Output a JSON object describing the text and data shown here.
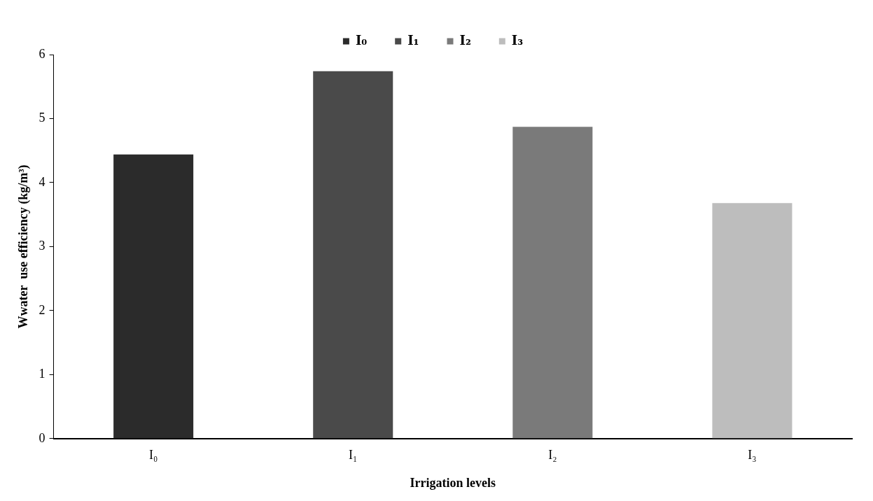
{
  "chart_data": {
    "type": "bar",
    "xlabel": "Irrigation levels",
    "ylabel": "Wwater  use efficiency (kg/m³)",
    "categories": [
      "I₀",
      "I₁",
      "I₂",
      "I₃"
    ],
    "series": [
      {
        "name": "I₀",
        "color": "#2b2b2b",
        "values": [
          4.44,
          null,
          null,
          null
        ]
      },
      {
        "name": "I₁",
        "color": "#4a4a4a",
        "values": [
          null,
          5.74,
          null,
          null
        ]
      },
      {
        "name": "I₂",
        "color": "#7a7a7a",
        "values": [
          null,
          null,
          4.87,
          null
        ]
      },
      {
        "name": "I₃",
        "color": "#bdbdbd",
        "values": [
          null,
          null,
          null,
          3.68
        ]
      }
    ],
    "ylim": [
      0,
      6
    ],
    "yticks": [
      0,
      1,
      2,
      3,
      4,
      5,
      6
    ],
    "grid": false,
    "legend": "top"
  }
}
